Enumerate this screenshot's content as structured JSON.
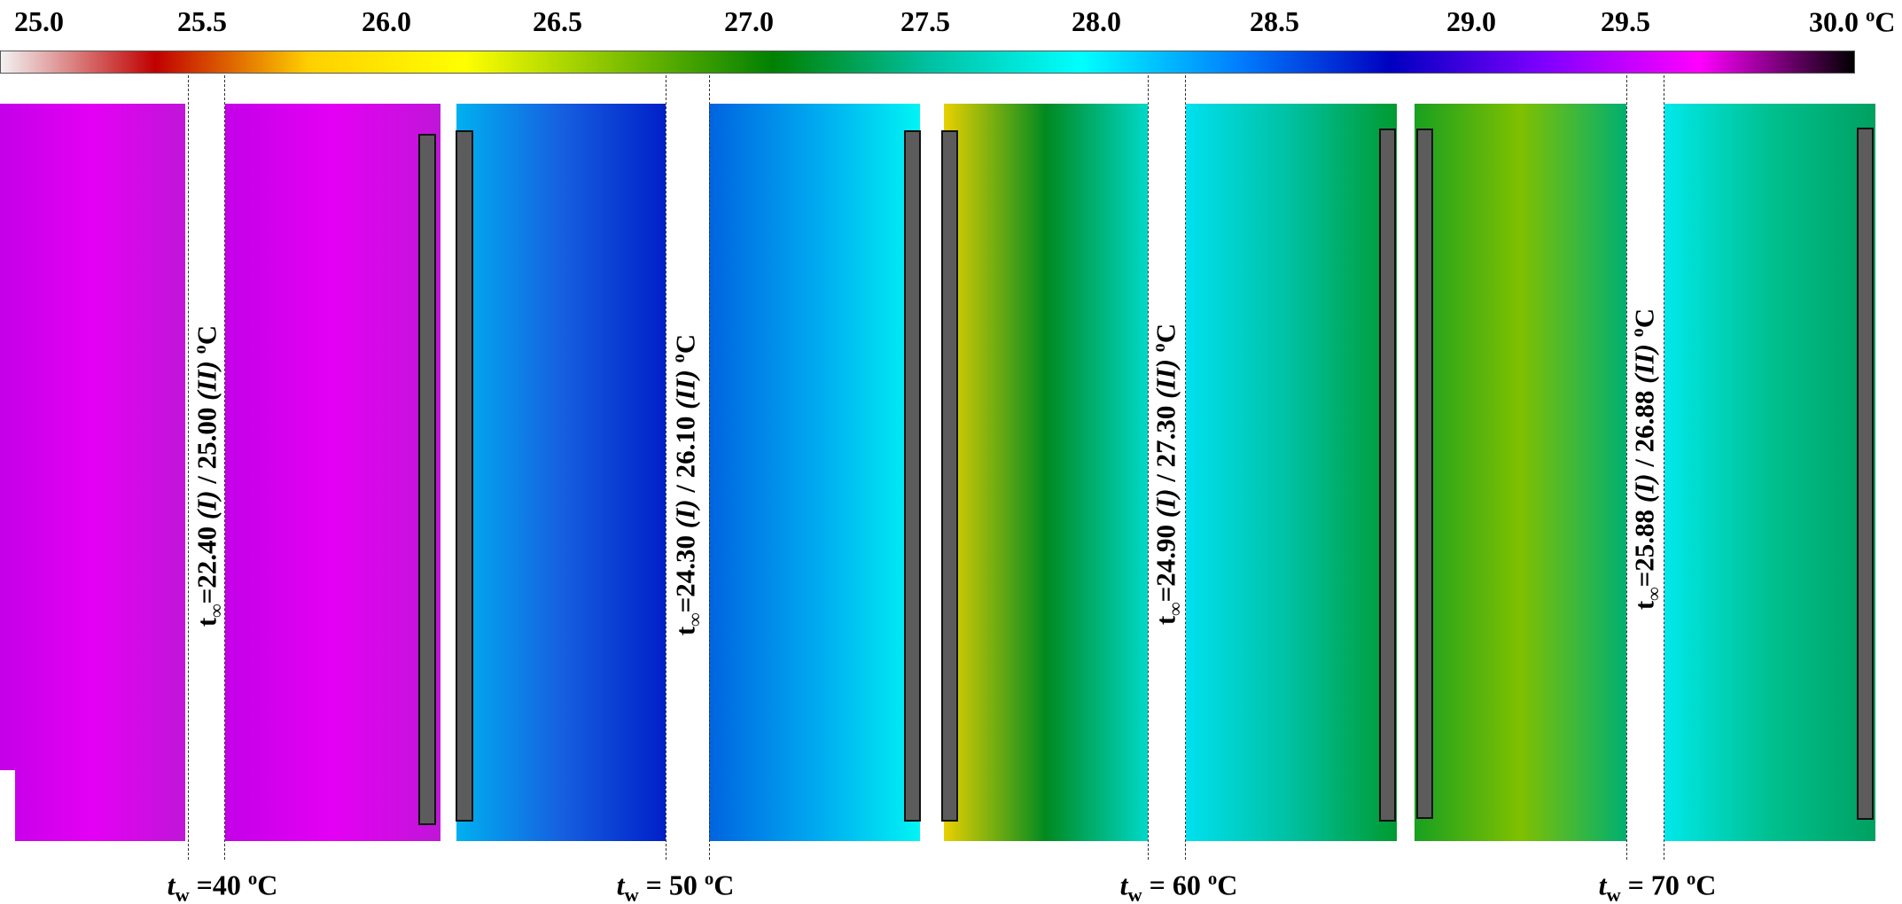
{
  "colorbar": {
    "ticks": [
      "25.0",
      "25.5",
      "26.0",
      "26.5",
      "27.0",
      "27.5",
      "28.0",
      "28.5",
      "29.0",
      "29.5",
      "30.0"
    ],
    "unit_sup": "o",
    "unit": "C",
    "stops": [
      "#f2f2f2",
      "#c00000",
      "#ffd000",
      "#ffff00",
      "#80c000",
      "#008000",
      "#00c0a0",
      "#00ffff",
      "#0080ff",
      "#0000c0",
      "#8000ff",
      "#ff00ff",
      "#000000"
    ]
  },
  "ambient_labels": [
    {
      "t_sym": "t",
      "t_sub": "∞",
      "v1": "=22.40",
      "i1": "(I)",
      "sep": "/",
      "v2": "25.00",
      "i2": "(II)",
      "unit_sup": "o",
      "unit": "C"
    },
    {
      "t_sym": "t",
      "t_sub": "∞",
      "v1": "=24.30",
      "i1": "(I)",
      "sep": "/",
      "v2": "26.10",
      "i2": "(II)",
      "unit_sup": "o",
      "unit": "C"
    },
    {
      "t_sym": "t",
      "t_sub": "∞",
      "v1": "=24.90",
      "i1": "(I)",
      "sep": "/",
      "v2": "27.30",
      "i2": "(II)",
      "unit_sup": "o",
      "unit": "C"
    },
    {
      "t_sym": "t",
      "t_sub": "∞",
      "v1": "=25.88",
      "i1": "(I)",
      "sep": "/",
      "v2": "26.88",
      "i2": "(II)",
      "unit_sup": "o",
      "unit": "C"
    }
  ],
  "wall_labels": [
    {
      "t_sym": "t",
      "t_sub": "w",
      "value": "=40",
      "unit_sup": "o",
      "unit": "C"
    },
    {
      "t_sym": "t",
      "t_sub": "w",
      "value": "= 50",
      "unit_sup": "o",
      "unit": "C"
    },
    {
      "t_sym": "t",
      "t_sub": "w",
      "value": "= 60",
      "unit_sup": "o",
      "unit": "C"
    },
    {
      "t_sym": "t",
      "t_sub": "w",
      "value": "= 70",
      "unit_sup": "o",
      "unit": "C"
    }
  ],
  "panel_colors": {
    "magenta": [
      "#c400e8",
      "#e400f4",
      "#c016d8"
    ],
    "blue": [
      "#00b0f0",
      "#1660e0",
      "#0020c8"
    ],
    "cyan": [
      "#0064e0",
      "#00a8f0",
      "#00f4f4"
    ],
    "green_dark": [
      "#e8d000",
      "#008a20",
      "#00d8c8"
    ],
    "green_light": [
      "#00e0f0",
      "#00c0a0",
      "#009a30"
    ],
    "green_yellow": [
      "#18a020",
      "#80c000",
      "#00b070"
    ],
    "teal": [
      "#00e8ea",
      "#00c090",
      "#00a060"
    ]
  }
}
